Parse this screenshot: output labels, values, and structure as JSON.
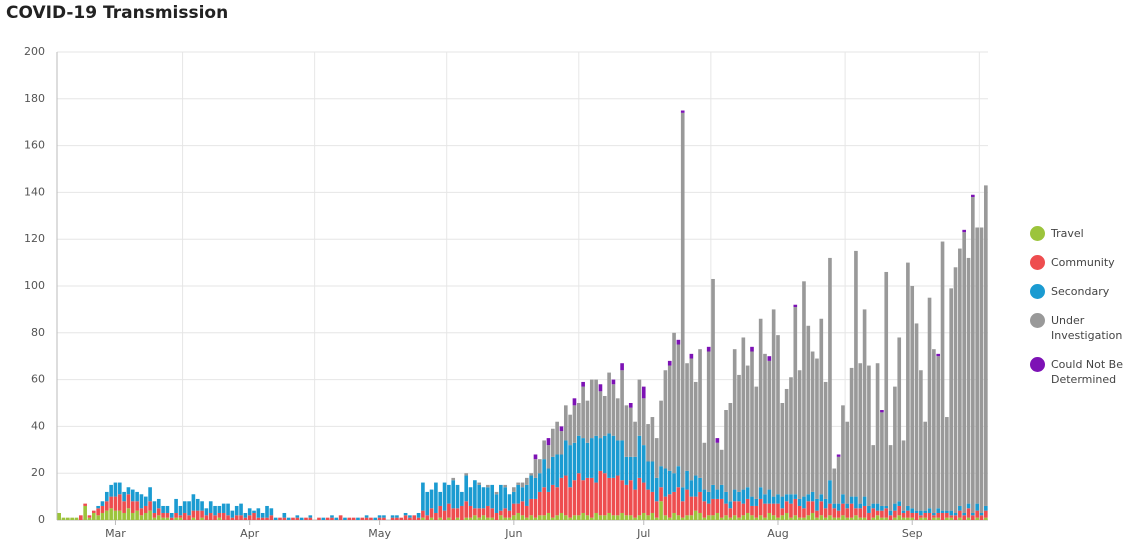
{
  "chart_data": {
    "type": "stacked_bar",
    "title": "COVID-19 Transmission",
    "categories": [
      null,
      null,
      null,
      null,
      null,
      null,
      null,
      null,
      null,
      null,
      null,
      null,
      null,
      "Mar",
      null,
      null,
      null,
      null,
      null,
      null,
      null,
      null,
      null,
      null,
      null,
      null,
      null,
      null,
      null,
      null,
      null,
      null,
      null,
      null,
      null,
      null,
      null,
      null,
      null,
      null,
      null,
      null,
      null,
      null,
      "Apr",
      null,
      null,
      null,
      null,
      null,
      null,
      null,
      null,
      null,
      null,
      null,
      null,
      null,
      null,
      null,
      null,
      null,
      null,
      null,
      null,
      null,
      null,
      null,
      null,
      null,
      null,
      null,
      null,
      null,
      "May",
      null,
      null,
      null,
      null,
      null,
      null,
      null,
      null,
      null,
      null,
      null,
      null,
      null,
      null,
      null,
      null,
      null,
      null,
      null,
      null,
      null,
      null,
      null,
      null,
      null,
      null,
      null,
      null,
      null,
      null,
      "Jun",
      null,
      null,
      null,
      null,
      null,
      null,
      null,
      null,
      null,
      null,
      null,
      null,
      null,
      null,
      null,
      null,
      null,
      null,
      null,
      null,
      null,
      null,
      null,
      null,
      null,
      null,
      null,
      null,
      null,
      "Jul",
      null,
      null,
      null,
      null,
      null,
      null,
      null,
      null,
      null,
      null,
      null,
      null,
      null,
      null,
      null,
      null,
      null,
      null,
      null,
      null,
      null,
      null,
      null,
      null,
      null,
      null,
      null,
      null,
      null,
      null,
      "Aug",
      null,
      null,
      null,
      null,
      null,
      null,
      null,
      null,
      null,
      null,
      null,
      null,
      null,
      null,
      null,
      null,
      null,
      null,
      null,
      null,
      null,
      null,
      null,
      null,
      null,
      null,
      null,
      null,
      null,
      null,
      "Sep",
      null,
      null,
      null,
      null,
      null,
      null,
      null,
      null,
      null,
      null,
      null,
      null,
      null,
      null,
      null,
      null,
      null
    ],
    "ylim": [
      0,
      200
    ],
    "yticks": [
      0,
      20,
      40,
      60,
      80,
      100,
      120,
      140,
      160,
      180,
      200
    ],
    "grid": true,
    "legend": "right",
    "series": [
      {
        "name": "Travel",
        "color": "#9cc43c",
        "values": [
          3,
          1,
          1,
          1,
          1,
          0,
          6,
          1,
          3,
          2,
          3,
          4,
          5,
          4,
          4,
          3,
          5,
          3,
          4,
          2,
          3,
          4,
          1,
          2,
          1,
          1,
          0,
          1,
          1,
          0,
          0,
          1,
          0,
          1,
          0,
          0,
          0,
          1,
          0,
          0,
          0,
          0,
          0,
          0,
          0,
          0,
          0,
          0,
          0,
          0,
          0,
          0,
          0,
          0,
          0,
          0,
          0,
          0,
          0,
          0,
          0,
          0,
          0,
          0,
          0,
          0,
          0,
          0,
          0,
          0,
          0,
          0,
          0,
          0,
          0,
          0,
          0,
          0,
          0,
          0,
          0,
          0,
          0,
          0,
          1,
          0,
          1,
          0,
          1,
          0,
          1,
          0,
          1,
          0,
          1,
          1,
          2,
          1,
          2,
          1,
          1,
          0,
          2,
          1,
          1,
          2,
          3,
          2,
          1,
          2,
          1,
          2,
          2,
          3,
          1,
          2,
          3,
          2,
          1,
          2,
          2,
          3,
          2,
          1,
          3,
          2,
          2,
          3,
          2,
          2,
          3,
          2,
          2,
          1,
          2,
          3,
          2,
          3,
          1,
          8,
          2,
          1,
          3,
          2,
          1,
          2,
          2,
          4,
          3,
          1,
          2,
          2,
          3,
          1,
          2,
          1,
          2,
          1,
          2,
          3,
          2,
          1,
          2,
          1,
          3,
          2,
          1,
          2,
          3,
          1,
          2,
          1,
          1,
          2,
          3,
          1,
          2,
          1,
          2,
          1,
          1,
          2,
          1,
          1,
          2,
          1,
          1,
          0,
          1,
          2,
          1,
          1,
          0,
          1,
          2,
          1,
          1,
          1,
          0,
          1,
          1,
          0,
          1,
          1,
          0,
          1,
          1,
          0,
          1,
          0,
          1,
          0,
          1,
          0,
          1
        ]
      },
      {
        "name": "Community",
        "color": "#ee4d4f",
        "values": [
          0,
          0,
          0,
          0,
          0,
          2,
          1,
          1,
          1,
          3,
          3,
          4,
          5,
          6,
          7,
          5,
          6,
          5,
          4,
          3,
          3,
          4,
          2,
          3,
          2,
          2,
          1,
          2,
          1,
          3,
          2,
          3,
          4,
          3,
          2,
          3,
          2,
          2,
          3,
          2,
          1,
          2,
          2,
          1,
          2,
          3,
          1,
          1,
          1,
          2,
          0,
          1,
          1,
          0,
          1,
          1,
          0,
          1,
          1,
          0,
          1,
          0,
          1,
          1,
          0,
          2,
          0,
          1,
          1,
          0,
          1,
          1,
          1,
          0,
          1,
          1,
          0,
          1,
          1,
          1,
          2,
          1,
          2,
          1,
          3,
          2,
          4,
          3,
          5,
          4,
          6,
          5,
          4,
          6,
          7,
          5,
          3,
          4,
          3,
          5,
          4,
          3,
          2,
          4,
          3,
          5,
          4,
          6,
          5,
          7,
          8,
          10,
          12,
          9,
          14,
          12,
          15,
          17,
          13,
          15,
          18,
          14,
          16,
          17,
          13,
          19,
          18,
          15,
          16,
          17,
          14,
          13,
          15,
          12,
          16,
          13,
          11,
          9,
          7,
          6,
          8,
          10,
          9,
          12,
          7,
          11,
          8,
          6,
          9,
          7,
          5,
          7,
          6,
          8,
          5,
          4,
          6,
          7,
          5,
          6,
          4,
          5,
          7,
          6,
          4,
          5,
          6,
          3,
          5,
          6,
          7,
          5,
          4,
          6,
          5,
          3,
          6,
          4,
          5,
          4,
          3,
          5,
          4,
          6,
          3,
          4,
          5,
          3,
          4,
          2,
          3,
          4,
          2,
          3,
          4,
          2,
          3,
          2,
          3,
          1,
          2,
          3,
          1,
          2,
          3,
          2,
          1,
          2,
          3,
          2,
          4,
          2,
          3,
          2,
          3
        ]
      },
      {
        "name": "Secondary",
        "color": "#1b9bd1",
        "values": [
          0,
          0,
          0,
          0,
          0,
          0,
          0,
          0,
          0,
          1,
          2,
          4,
          5,
          6,
          5,
          4,
          3,
          5,
          4,
          6,
          4,
          6,
          5,
          4,
          3,
          3,
          2,
          6,
          4,
          5,
          6,
          7,
          5,
          4,
          3,
          5,
          4,
          3,
          4,
          5,
          3,
          4,
          5,
          2,
          3,
          1,
          4,
          2,
          5,
          3,
          1,
          0,
          2,
          1,
          0,
          1,
          1,
          0,
          1,
          0,
          0,
          1,
          0,
          1,
          1,
          0,
          1,
          0,
          0,
          1,
          0,
          1,
          0,
          1,
          1,
          1,
          0,
          1,
          1,
          0,
          1,
          1,
          0,
          2,
          12,
          10,
          8,
          13,
          6,
          12,
          8,
          12,
          10,
          6,
          11,
          8,
          12,
          10,
          9,
          8,
          10,
          8,
          11,
          9,
          7,
          5,
          8,
          6,
          9,
          10,
          9,
          8,
          12,
          10,
          12,
          14,
          10,
          15,
          18,
          16,
          16,
          18,
          15,
          17,
          20,
          14,
          16,
          19,
          18,
          15,
          17,
          12,
          10,
          14,
          18,
          16,
          12,
          13,
          10,
          9,
          12,
          10,
          8,
          9,
          6,
          8,
          7,
          9,
          6,
          5,
          5,
          6,
          4,
          6,
          5,
          3,
          5,
          4,
          6,
          5,
          4,
          3,
          5,
          4,
          6,
          3,
          4,
          5,
          3,
          4,
          2,
          3,
          5,
          3,
          4,
          5,
          3,
          4,
          10,
          2,
          3,
          4,
          2,
          3,
          5,
          2,
          4,
          3,
          2,
          3,
          2,
          1,
          2,
          3,
          2,
          1,
          2,
          2,
          1,
          2,
          1,
          2,
          1,
          2,
          1,
          1,
          2,
          1,
          2,
          1,
          2,
          1,
          3,
          1,
          2
        ]
      },
      {
        "name": "Under Investigation",
        "color": "#999999",
        "values": [
          0,
          0,
          0,
          0,
          0,
          0,
          0,
          0,
          0,
          0,
          0,
          0,
          0,
          0,
          0,
          0,
          0,
          0,
          0,
          0,
          0,
          0,
          0,
          0,
          0,
          0,
          0,
          0,
          0,
          0,
          0,
          0,
          0,
          0,
          0,
          0,
          0,
          0,
          0,
          0,
          0,
          0,
          0,
          0,
          0,
          0,
          0,
          0,
          0,
          0,
          0,
          0,
          0,
          0,
          0,
          0,
          0,
          0,
          0,
          0,
          0,
          0,
          0,
          0,
          0,
          0,
          0,
          0,
          0,
          0,
          0,
          0,
          0,
          0,
          0,
          0,
          0,
          0,
          0,
          0,
          0,
          0,
          0,
          0,
          0,
          0,
          0,
          0,
          0,
          0,
          0,
          1,
          0,
          0,
          1,
          0,
          0,
          1,
          0,
          1,
          0,
          1,
          0,
          1,
          0,
          2,
          1,
          2,
          3,
          1,
          8,
          6,
          8,
          10,
          12,
          14,
          10,
          15,
          13,
          16,
          14,
          22,
          18,
          25,
          24,
          20,
          17,
          26,
          22,
          18,
          30,
          22,
          21,
          15,
          24,
          20,
          16,
          19,
          17,
          28,
          42,
          45,
          60,
          52,
          160,
          46,
          52,
          40,
          55,
          20,
          60,
          88,
          20,
          15,
          35,
          42,
          60,
          50,
          65,
          52,
          62,
          48,
          72,
          60,
          55,
          80,
          68,
          40,
          45,
          50,
          80,
          55,
          92,
          72,
          60,
          60,
          75,
          50,
          95,
          15,
          20,
          38,
          35,
          55,
          105,
          60,
          80,
          60,
          25,
          60,
          40,
          100,
          28,
          50,
          70,
          30,
          104,
          95,
          80,
          60,
          38,
          90,
          70,
          65,
          115,
          40,
          95,
          105,
          110,
          120,
          105,
          135,
          118,
          122,
          137
        ]
      },
      {
        "name": "Could Not Be Determined",
        "color": "#7d12b5",
        "values": [
          0,
          0,
          0,
          0,
          0,
          0,
          0,
          0,
          0,
          0,
          0,
          0,
          0,
          0,
          0,
          0,
          0,
          0,
          0,
          0,
          0,
          0,
          0,
          0,
          0,
          0,
          0,
          0,
          0,
          0,
          0,
          0,
          0,
          0,
          0,
          0,
          0,
          0,
          0,
          0,
          0,
          0,
          0,
          0,
          0,
          0,
          0,
          0,
          0,
          0,
          0,
          0,
          0,
          0,
          0,
          0,
          0,
          0,
          0,
          0,
          0,
          0,
          0,
          0,
          0,
          0,
          0,
          0,
          0,
          0,
          0,
          0,
          0,
          0,
          0,
          0,
          0,
          0,
          0,
          0,
          0,
          0,
          0,
          0,
          0,
          0,
          0,
          0,
          0,
          0,
          0,
          0,
          0,
          0,
          0,
          0,
          0,
          0,
          0,
          0,
          0,
          0,
          0,
          0,
          0,
          0,
          0,
          0,
          0,
          0,
          2,
          0,
          0,
          3,
          0,
          0,
          2,
          0,
          0,
          3,
          0,
          2,
          0,
          0,
          0,
          3,
          0,
          0,
          2,
          0,
          3,
          0,
          2,
          0,
          0,
          5,
          0,
          0,
          0,
          0,
          0,
          2,
          0,
          2,
          1,
          0,
          2,
          0,
          0,
          0,
          2,
          0,
          2,
          0,
          0,
          0,
          0,
          0,
          0,
          0,
          2,
          0,
          0,
          0,
          2,
          0,
          0,
          0,
          0,
          0,
          1,
          0,
          0,
          0,
          0,
          0,
          0,
          0,
          0,
          0,
          1,
          0,
          0,
          0,
          0,
          0,
          0,
          0,
          0,
          0,
          1,
          0,
          0,
          0,
          0,
          0,
          0,
          0,
          0,
          0,
          0,
          0,
          0,
          1,
          0,
          0,
          0,
          0,
          0,
          1,
          0,
          1,
          0,
          0,
          0
        ]
      }
    ]
  }
}
